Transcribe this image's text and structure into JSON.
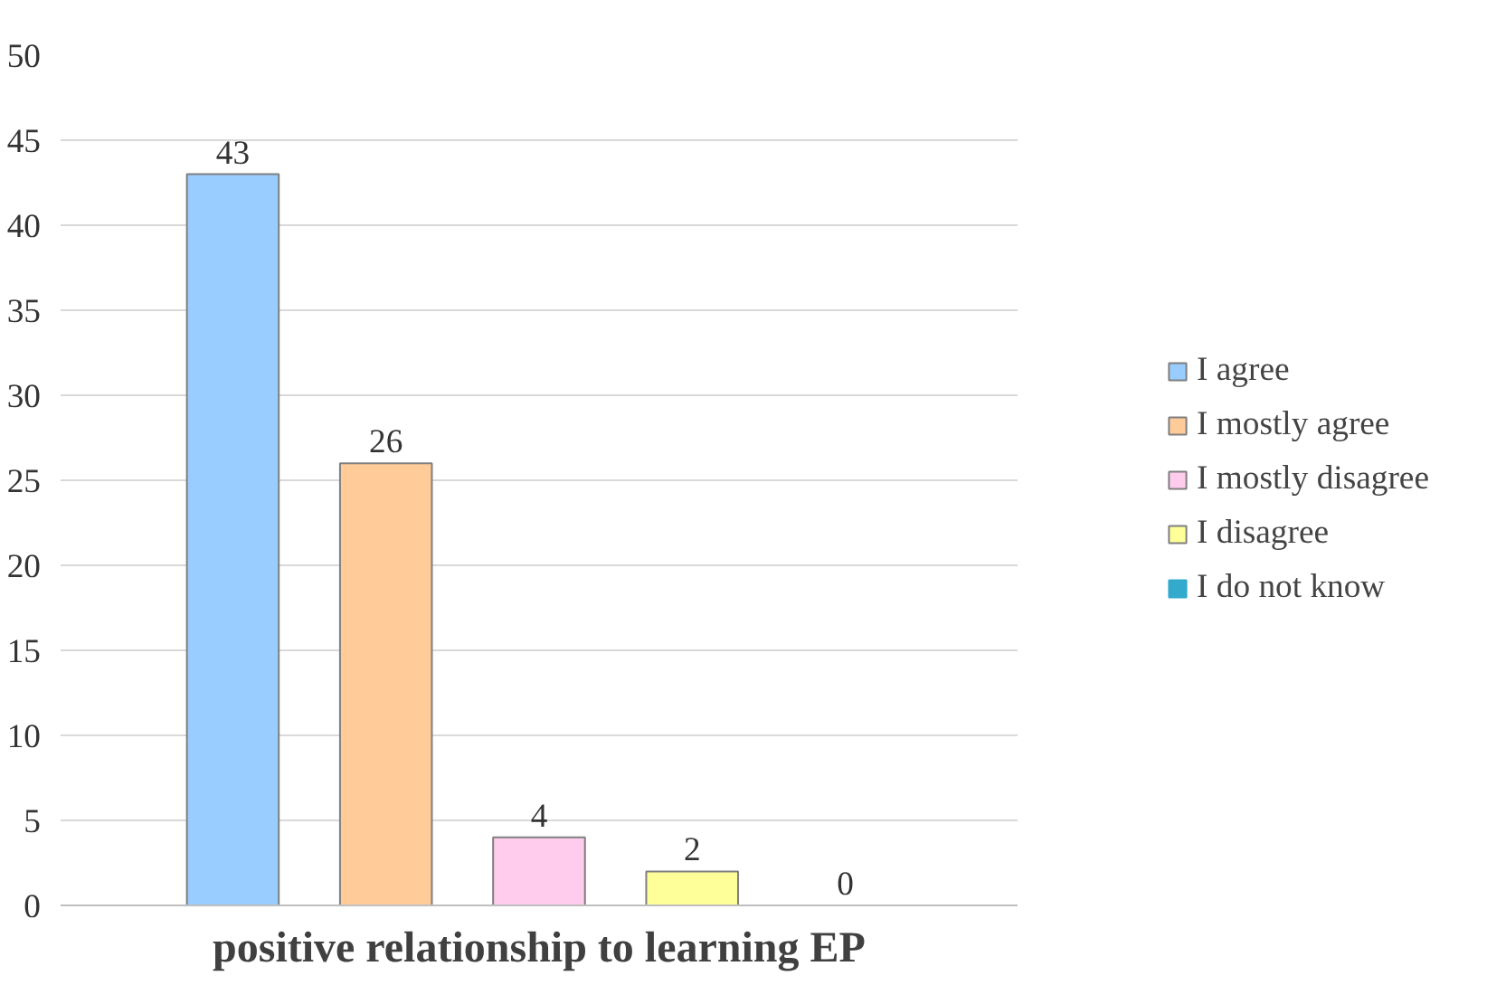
{
  "chart_data": {
    "type": "bar",
    "categories": [
      "positive relationship to learning EP"
    ],
    "series": [
      {
        "name": "I agree",
        "color": "#99ccff",
        "values": [
          43
        ]
      },
      {
        "name": "I mostly agree",
        "color": "#ffcc99",
        "values": [
          26
        ]
      },
      {
        "name": "I mostly disagree",
        "color": "#ffccee",
        "values": [
          4
        ]
      },
      {
        "name": "I disagree",
        "color": "#ffff99",
        "values": [
          2
        ]
      },
      {
        "name": "I do not know",
        "color": "#33aacc",
        "values": [
          0
        ]
      }
    ],
    "ylim": [
      0,
      50
    ],
    "yticks": [
      0,
      5,
      10,
      15,
      20,
      25,
      30,
      35,
      40,
      45,
      50
    ],
    "grid": "y",
    "legend": "right",
    "data_labels": true
  }
}
